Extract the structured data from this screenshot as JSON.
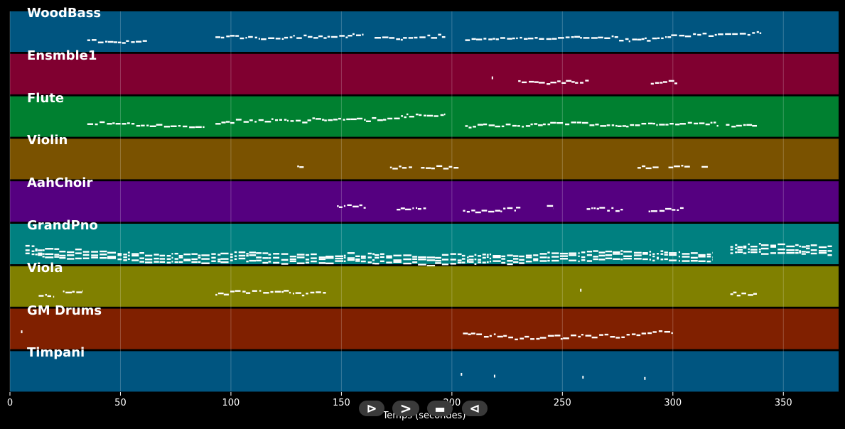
{
  "chart_data": {
    "type": "piano-roll",
    "xlabel": "Temps (secondes)",
    "xlim": [
      0,
      375
    ],
    "xticks": [
      0,
      50,
      100,
      150,
      200,
      250,
      300,
      350
    ],
    "grid": true,
    "tracks": [
      {
        "name": "WoodBass",
        "color": "#005580",
        "segments": [
          [
            35,
            62
          ],
          [
            93,
            160
          ],
          [
            165,
            197
          ],
          [
            206,
            340
          ]
        ]
      },
      {
        "name": "Ensmble1",
        "color": "#800030",
        "segments": [
          [
            218,
            219
          ],
          [
            230,
            262
          ],
          [
            290,
            302
          ]
        ]
      },
      {
        "name": "Flute",
        "color": "#008030",
        "segments": [
          [
            35,
            88
          ],
          [
            93,
            197
          ],
          [
            206,
            321
          ],
          [
            324,
            338
          ]
        ]
      },
      {
        "name": "Violin",
        "color": "#7a5200",
        "segments": [
          [
            130,
            133
          ],
          [
            172,
            182
          ],
          [
            186,
            203
          ],
          [
            284,
            294
          ],
          [
            298,
            308
          ],
          [
            313,
            316
          ]
        ]
      },
      {
        "name": "AahChoir",
        "color": "#550080",
        "segments": [
          [
            148,
            161
          ],
          [
            175,
            189
          ],
          [
            205,
            231
          ],
          [
            243,
            246
          ],
          [
            261,
            278
          ],
          [
            289,
            305
          ]
        ]
      },
      {
        "name": "GrandPno",
        "color": "#008080",
        "segments": [
          [
            7,
            318
          ],
          [
            326,
            372
          ]
        ]
      },
      {
        "name": "Viola",
        "color": "#808000",
        "segments": [
          [
            13,
            20
          ],
          [
            24,
            33
          ],
          [
            93,
            143
          ],
          [
            258,
            259
          ],
          [
            326,
            338
          ]
        ]
      },
      {
        "name": "GM Drums",
        "color": "#802000",
        "segments": [
          [
            5,
            6
          ],
          [
            205,
            300
          ]
        ]
      },
      {
        "name": "Timpani",
        "color": "#005580",
        "segments": [
          [
            204,
            205
          ],
          [
            219,
            220
          ],
          [
            259,
            260
          ],
          [
            287,
            288
          ]
        ]
      }
    ]
  },
  "controls": {
    "play_label": "⊳",
    "forward_label": ">",
    "stop_label": "▬",
    "back_label": "⊲"
  }
}
